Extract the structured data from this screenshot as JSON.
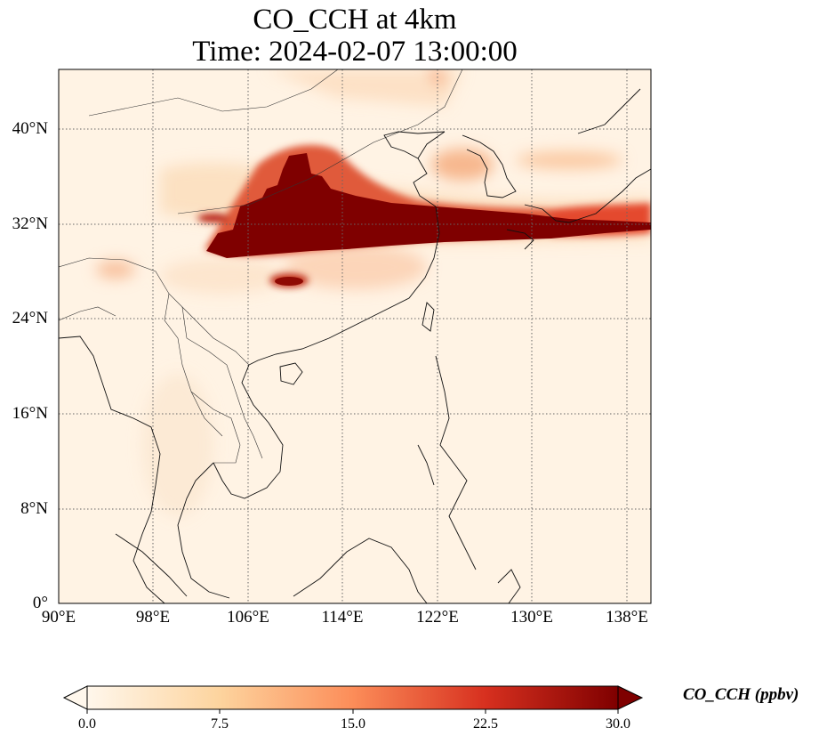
{
  "title": {
    "line1": "CO_CCH at 4km",
    "line2": "Time: 2024-02-07 13:00:00"
  },
  "map": {
    "extent": {
      "lon_min": 90,
      "lon_max": 140,
      "lat_min": 0,
      "lat_max": 45
    },
    "gridlines": "dotted",
    "lon_ticks": [
      {
        "value": 90,
        "label": "90°E"
      },
      {
        "value": 98,
        "label": "98°E"
      },
      {
        "value": 106,
        "label": "106°E"
      },
      {
        "value": 114,
        "label": "114°E"
      },
      {
        "value": 122,
        "label": "122°E"
      },
      {
        "value": 130,
        "label": "130°E"
      },
      {
        "value": 138,
        "label": "138°E"
      }
    ],
    "lat_ticks": [
      {
        "value": 40,
        "label": "40°N"
      },
      {
        "value": 32,
        "label": "32°N"
      },
      {
        "value": 24,
        "label": "24°N"
      },
      {
        "value": 16,
        "label": "16°N"
      },
      {
        "value": 8,
        "label": "8°N"
      },
      {
        "value": 0,
        "label": "0°"
      }
    ]
  },
  "colorbar": {
    "label": "CO_CCH (ppbv)",
    "range": [
      0,
      30
    ],
    "extend": "both",
    "colors": [
      "#fff7ec",
      "#fdd49e",
      "#fc8d59",
      "#d7301f",
      "#7f0000"
    ],
    "ticks": [
      "0.0",
      "7.5",
      "15.0",
      "22.5",
      "30.0"
    ]
  }
}
